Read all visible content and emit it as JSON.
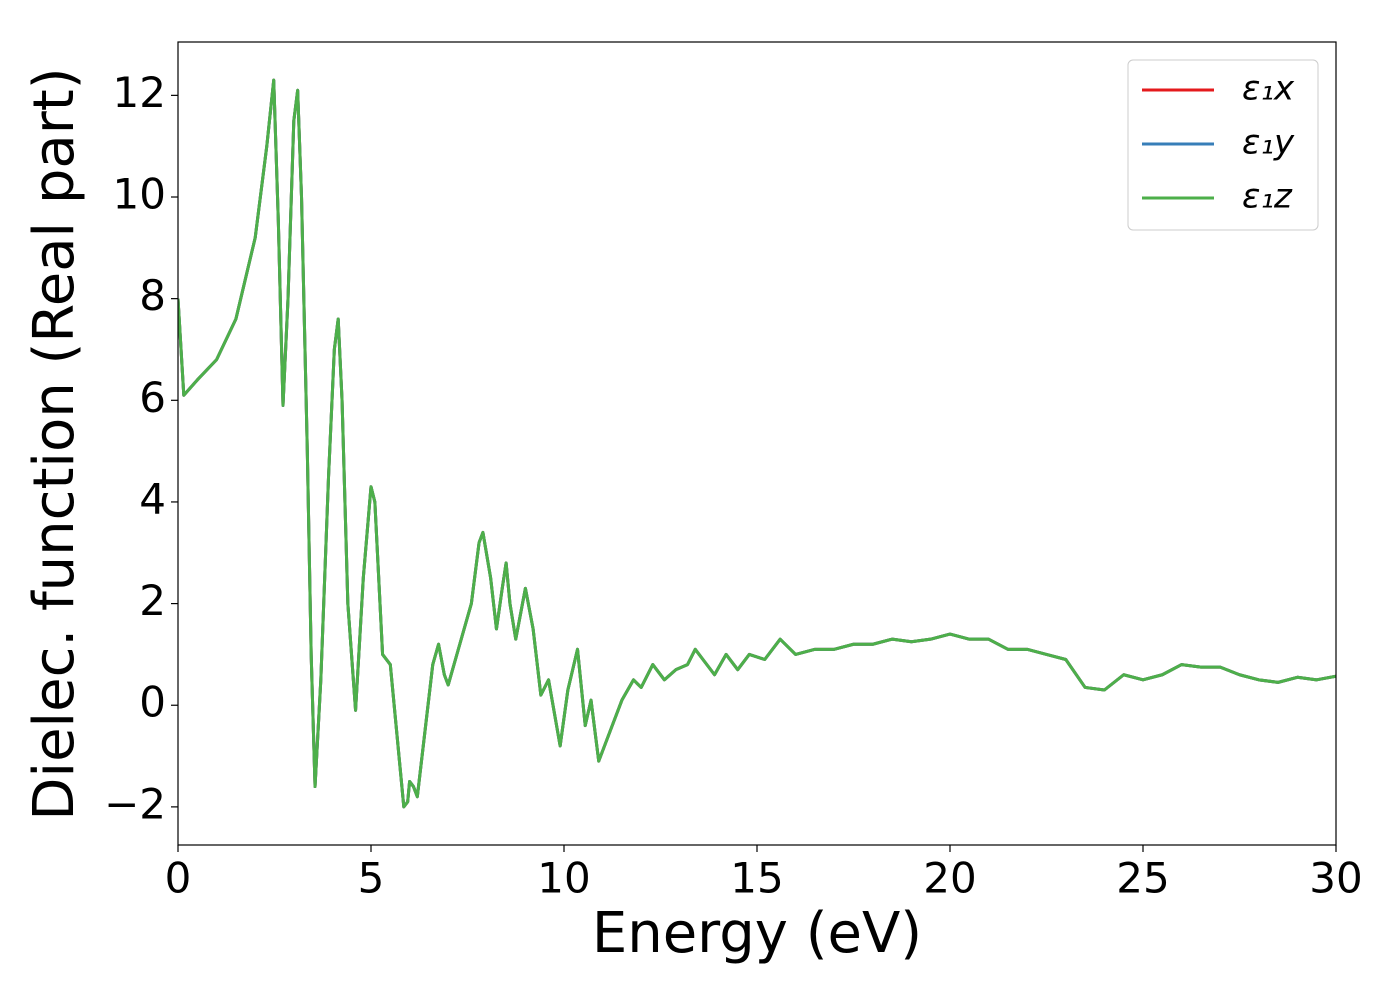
{
  "chart_data": {
    "type": "line",
    "xlabel": "Energy (eV)",
    "ylabel": "Dielec. function (Real part)",
    "x": [
      0,
      0.15,
      0.5,
      1.0,
      1.5,
      2.0,
      2.3,
      2.48,
      2.6,
      2.72,
      2.85,
      3.0,
      3.1,
      3.2,
      3.35,
      3.45,
      3.55,
      3.7,
      3.9,
      4.05,
      4.15,
      4.25,
      4.4,
      4.6,
      4.8,
      5.0,
      5.1,
      5.3,
      5.5,
      5.7,
      5.85,
      5.95,
      6.0,
      6.1,
      6.2,
      6.4,
      6.6,
      6.75,
      6.9,
      7.0,
      7.3,
      7.6,
      7.8,
      7.9,
      8.1,
      8.25,
      8.4,
      8.5,
      8.6,
      8.75,
      9.0,
      9.2,
      9.4,
      9.6,
      9.9,
      10.1,
      10.35,
      10.55,
      10.7,
      10.9,
      11.2,
      11.5,
      11.8,
      12.0,
      12.3,
      12.6,
      12.9,
      13.2,
      13.4,
      13.6,
      13.9,
      14.2,
      14.5,
      14.8,
      15.2,
      15.6,
      16.0,
      16.5,
      17.0,
      17.5,
      18.0,
      18.5,
      19.0,
      19.5,
      20.0,
      20.5,
      21.0,
      21.5,
      22.0,
      22.5,
      23.0,
      23.5,
      24.0,
      24.5,
      25.0,
      25.5,
      26.0,
      26.5,
      27.0,
      27.5,
      28.0,
      28.5,
      29.0,
      29.5,
      30.0
    ],
    "series": [
      {
        "name": "ε₁x",
        "color": "#e41a1c",
        "values": [
          8.0,
          6.1,
          6.4,
          6.8,
          7.6,
          9.2,
          11.0,
          12.3,
          9.5,
          5.9,
          8.0,
          11.5,
          12.1,
          10.0,
          5.0,
          1.0,
          -1.6,
          0.5,
          4.5,
          7.0,
          7.6,
          6.0,
          2.0,
          -0.1,
          2.5,
          4.3,
          4.0,
          1.0,
          0.8,
          -0.8,
          -2.0,
          -1.9,
          -1.5,
          -1.6,
          -1.8,
          -0.5,
          0.8,
          1.2,
          0.6,
          0.4,
          1.2,
          2.0,
          3.2,
          3.4,
          2.5,
          1.5,
          2.3,
          2.8,
          2.0,
          1.3,
          2.3,
          1.5,
          0.2,
          0.5,
          -0.8,
          0.3,
          1.1,
          -0.4,
          0.1,
          -1.1,
          -0.5,
          0.1,
          0.5,
          0.35,
          0.8,
          0.5,
          0.7,
          0.8,
          1.1,
          0.9,
          0.6,
          1.0,
          0.7,
          1.0,
          0.9,
          1.3,
          1.0,
          1.1,
          1.1,
          1.2,
          1.2,
          1.3,
          1.25,
          1.3,
          1.4,
          1.3,
          1.3,
          1.1,
          1.1,
          1.0,
          0.9,
          0.35,
          0.3,
          0.6,
          0.5,
          0.6,
          0.8,
          0.75,
          0.75,
          0.6,
          0.5,
          0.45,
          0.55,
          0.5,
          0.57
        ]
      },
      {
        "name": "ε₁y",
        "color": "#377eb8",
        "values": [
          8.0,
          6.1,
          6.4,
          6.8,
          7.6,
          9.2,
          11.0,
          12.3,
          9.5,
          5.9,
          8.0,
          11.5,
          12.1,
          10.0,
          5.0,
          1.0,
          -1.6,
          0.5,
          4.5,
          7.0,
          7.6,
          6.0,
          2.0,
          -0.1,
          2.5,
          4.3,
          4.0,
          1.0,
          0.8,
          -0.8,
          -2.0,
          -1.9,
          -1.5,
          -1.6,
          -1.8,
          -0.5,
          0.8,
          1.2,
          0.6,
          0.4,
          1.2,
          2.0,
          3.2,
          3.4,
          2.5,
          1.5,
          2.3,
          2.8,
          2.0,
          1.3,
          2.3,
          1.5,
          0.2,
          0.5,
          -0.8,
          0.3,
          1.1,
          -0.4,
          0.1,
          -1.1,
          -0.5,
          0.1,
          0.5,
          0.35,
          0.8,
          0.5,
          0.7,
          0.8,
          1.1,
          0.9,
          0.6,
          1.0,
          0.7,
          1.0,
          0.9,
          1.3,
          1.0,
          1.1,
          1.1,
          1.2,
          1.2,
          1.3,
          1.25,
          1.3,
          1.4,
          1.3,
          1.3,
          1.1,
          1.1,
          1.0,
          0.9,
          0.35,
          0.3,
          0.6,
          0.5,
          0.6,
          0.8,
          0.75,
          0.75,
          0.6,
          0.5,
          0.45,
          0.55,
          0.5,
          0.57
        ]
      },
      {
        "name": "ε₁z",
        "color": "#4daf4a",
        "values": [
          8.0,
          6.1,
          6.4,
          6.8,
          7.6,
          9.2,
          11.0,
          12.3,
          9.5,
          5.9,
          8.0,
          11.5,
          12.1,
          10.0,
          5.0,
          1.0,
          -1.6,
          0.5,
          4.5,
          7.0,
          7.6,
          6.0,
          2.0,
          -0.1,
          2.5,
          4.3,
          4.0,
          1.0,
          0.8,
          -0.8,
          -2.0,
          -1.9,
          -1.5,
          -1.6,
          -1.8,
          -0.5,
          0.8,
          1.2,
          0.6,
          0.4,
          1.2,
          2.0,
          3.2,
          3.4,
          2.5,
          1.5,
          2.3,
          2.8,
          2.0,
          1.3,
          2.3,
          1.5,
          0.2,
          0.5,
          -0.8,
          0.3,
          1.1,
          -0.4,
          0.1,
          -1.1,
          -0.5,
          0.1,
          0.5,
          0.35,
          0.8,
          0.5,
          0.7,
          0.8,
          1.1,
          0.9,
          0.6,
          1.0,
          0.7,
          1.0,
          0.9,
          1.3,
          1.0,
          1.1,
          1.1,
          1.2,
          1.2,
          1.3,
          1.25,
          1.3,
          1.4,
          1.3,
          1.3,
          1.1,
          1.1,
          1.0,
          0.9,
          0.35,
          0.3,
          0.6,
          0.5,
          0.6,
          0.8,
          0.75,
          0.75,
          0.6,
          0.5,
          0.45,
          0.55,
          0.5,
          0.57
        ]
      }
    ],
    "xlim": [
      0,
      30
    ],
    "xticks": [
      0,
      5,
      10,
      15,
      20,
      25,
      30
    ],
    "ylim": [
      -2.75,
      13.05
    ],
    "yticks": [
      {
        "value": -2,
        "label": "−2"
      },
      0,
      2,
      4,
      6,
      8,
      10,
      12
    ],
    "grid": false,
    "legend": "upper right"
  }
}
